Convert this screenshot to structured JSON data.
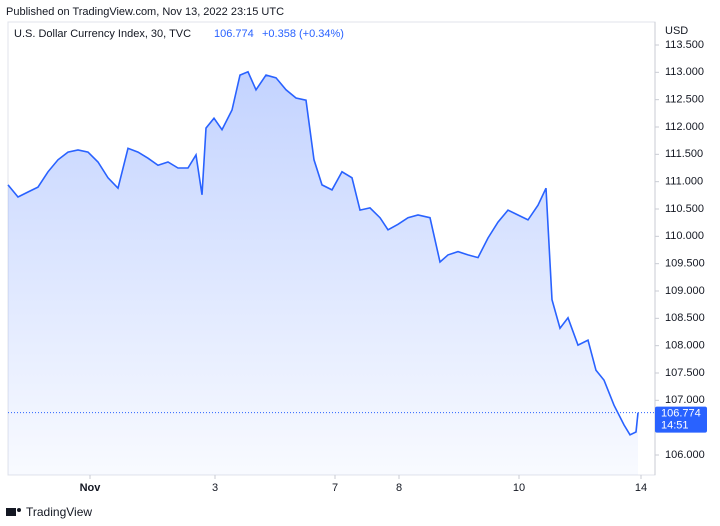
{
  "header": {
    "published": "Published on TradingView.com, Nov 13, 2022 23:15 UTC"
  },
  "chart_data": {
    "type": "line",
    "title": "U.S. Dollar Currency Index, 30, TVC",
    "last_value": 106.774,
    "change": "+0.358 (+0.34%)",
    "countdown": "14:51",
    "y_axis_label": "USD",
    "color": "#2962ff",
    "x": [
      0,
      2,
      4,
      6,
      8,
      10,
      12,
      14,
      16,
      18,
      20,
      22,
      24,
      26,
      28,
      30,
      32,
      34,
      36,
      37.6,
      38.8,
      39.6,
      41.2,
      42.8,
      44.8,
      46.4,
      48,
      49.6,
      51.6,
      53.6,
      55.6,
      57.6,
      59.6,
      61.2,
      62.8,
      64.8,
      66.8,
      68.8,
      70.4,
      72.4,
      74.4,
      76,
      78,
      80,
      82,
      84.4,
      86.4,
      88,
      90,
      92,
      94,
      96,
      98,
      100,
      102,
      104,
      106,
      107.6,
      108.8,
      110.4,
      112,
      114,
      116,
      117.6,
      119.2,
      121.2,
      123.2,
      124.4,
      125.6,
      126
    ],
    "values": [
      110.94,
      110.72,
      110.81,
      110.9,
      111.18,
      111.4,
      111.54,
      111.58,
      111.54,
      111.36,
      111.07,
      110.88,
      111.61,
      111.54,
      111.43,
      111.3,
      111.36,
      111.25,
      111.25,
      111.49,
      110.76,
      111.98,
      112.16,
      111.95,
      112.31,
      112.95,
      113.01,
      112.68,
      112.95,
      112.9,
      112.68,
      112.53,
      112.49,
      111.4,
      110.94,
      110.85,
      111.18,
      111.07,
      110.48,
      110.52,
      110.34,
      110.12,
      110.22,
      110.34,
      110.39,
      110.34,
      109.53,
      109.66,
      109.72,
      109.66,
      109.61,
      109.97,
      110.26,
      110.48,
      110.39,
      110.3,
      110.57,
      110.88,
      108.84,
      108.32,
      108.51,
      108.01,
      108.1,
      107.55,
      107.37,
      106.91,
      106.55,
      106.37,
      106.42,
      106.774
    ],
    "xlim": [
      0,
      129.4
    ],
    "ylim": [
      105.634,
      113.628
    ],
    "xticks": [
      {
        "value": 16.4,
        "label": "Nov"
      },
      {
        "value": 41.4,
        "label": "3"
      },
      {
        "value": 65.4,
        "label": "7"
      },
      {
        "value": 78.2,
        "label": "8"
      },
      {
        "value": 102.2,
        "label": "10"
      },
      {
        "value": 126.6,
        "label": "14"
      }
    ],
    "yticks": [
      {
        "value": 106,
        "label": "106.000"
      },
      {
        "value": 106.5,
        "label": "106.500"
      },
      {
        "value": 107,
        "label": "107.000"
      },
      {
        "value": 107.5,
        "label": "107.500"
      },
      {
        "value": 108,
        "label": "108.000"
      },
      {
        "value": 108.5,
        "label": "108.500"
      },
      {
        "value": 109,
        "label": "109.000"
      },
      {
        "value": 109.5,
        "label": "109.500"
      },
      {
        "value": 110,
        "label": "110.000"
      },
      {
        "value": 110.5,
        "label": "110.500"
      },
      {
        "value": 111,
        "label": "111.000"
      },
      {
        "value": 111.5,
        "label": "111.500"
      },
      {
        "value": 112,
        "label": "112.000"
      },
      {
        "value": 112.5,
        "label": "112.500"
      },
      {
        "value": 113,
        "label": "113.000"
      },
      {
        "value": 113.5,
        "label": "113.500"
      }
    ]
  },
  "footer": {
    "brand": "TradingView"
  }
}
